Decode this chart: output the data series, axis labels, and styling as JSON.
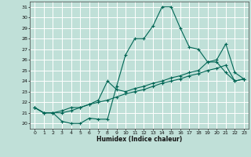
{
  "xlabel": "Humidex (Indice chaleur)",
  "bg_color": "#c0e0d8",
  "grid_color": "#ffffff",
  "line_color": "#006655",
  "xlim": [
    -0.5,
    23.5
  ],
  "ylim": [
    19.5,
    31.5
  ],
  "yticks": [
    20,
    21,
    22,
    23,
    24,
    25,
    26,
    27,
    28,
    29,
    30,
    31
  ],
  "xticks": [
    0,
    1,
    2,
    3,
    4,
    5,
    6,
    7,
    8,
    9,
    10,
    11,
    12,
    13,
    14,
    15,
    16,
    17,
    18,
    19,
    20,
    21,
    22,
    23
  ],
  "line1_x": [
    0,
    1,
    2,
    3,
    4,
    5,
    6,
    7,
    8,
    9,
    10,
    11,
    12,
    13,
    14,
    15,
    16,
    17,
    18,
    19,
    20,
    21,
    22,
    23
  ],
  "line1_y": [
    21.5,
    21.0,
    21.0,
    20.2,
    20.0,
    20.0,
    20.5,
    20.4,
    20.4,
    23.5,
    26.5,
    28.0,
    28.0,
    29.2,
    31.0,
    31.0,
    29.0,
    27.2,
    27.0,
    25.8,
    25.8,
    24.8,
    24.0,
    24.2
  ],
  "line2_x": [
    0,
    1,
    2,
    3,
    4,
    5,
    6,
    7,
    8,
    9,
    10,
    11,
    12,
    13,
    14,
    15,
    16,
    17,
    18,
    19,
    20,
    21,
    22,
    23
  ],
  "line2_y": [
    21.5,
    21.0,
    21.0,
    21.2,
    21.5,
    21.5,
    21.8,
    22.2,
    24.0,
    23.2,
    23.0,
    23.3,
    23.5,
    23.8,
    24.0,
    24.3,
    24.5,
    24.8,
    25.0,
    25.8,
    26.0,
    27.5,
    24.8,
    24.2
  ],
  "line3_x": [
    0,
    1,
    2,
    3,
    4,
    5,
    6,
    7,
    8,
    9,
    10,
    11,
    12,
    13,
    14,
    15,
    16,
    17,
    18,
    19,
    20,
    21,
    22,
    23
  ],
  "line3_y": [
    21.5,
    21.0,
    21.0,
    21.0,
    21.2,
    21.5,
    21.8,
    22.0,
    22.2,
    22.5,
    22.8,
    23.0,
    23.2,
    23.5,
    23.8,
    24.0,
    24.2,
    24.5,
    24.7,
    25.0,
    25.2,
    25.5,
    24.0,
    24.2
  ]
}
